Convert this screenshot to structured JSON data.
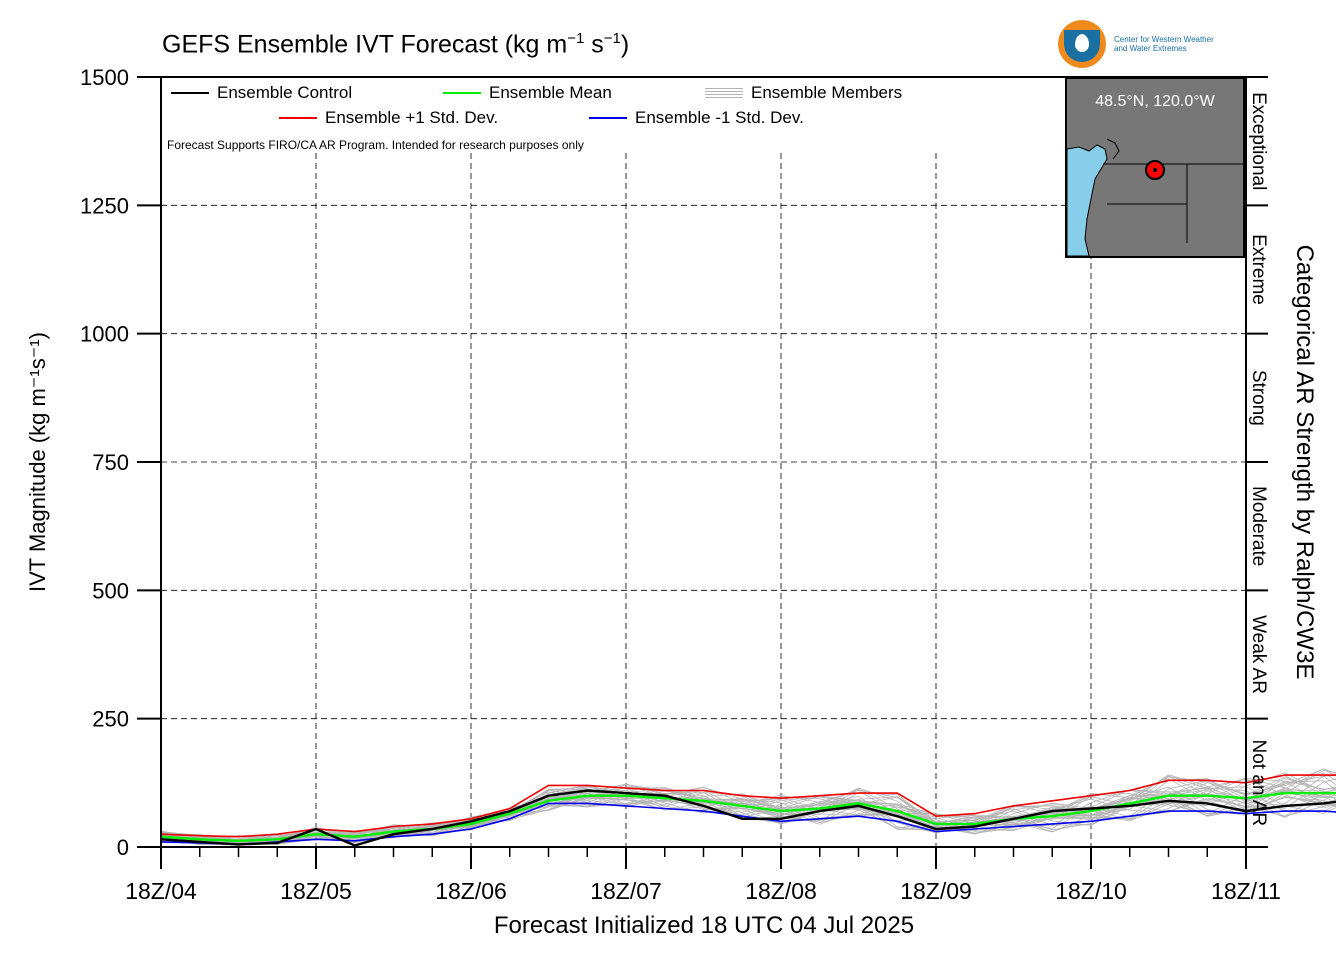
{
  "title": {
    "text": "GEFS Ensemble IVT Forecast (kg m",
    "exp1": "−1",
    "mid": " s",
    "exp2": "−1",
    "close": ")"
  },
  "logo": {
    "line1": "Center for Western Weather",
    "line2": "and Water Extremes"
  },
  "map": {
    "location": "48.5°N, 120.0°W",
    "water_color": "#87ceeb",
    "land_color": "#777777",
    "marker_color": "#ff0000"
  },
  "disclaimer": "Forecast Supports FIRO/CA AR Program. Intended for research purposes only",
  "legend": {
    "control": "Ensemble Control",
    "mean": "Ensemble Mean",
    "members": "Ensemble Members",
    "plus": "Ensemble +1 Std. Dev.",
    "minus": "Ensemble -1 Std. Dev."
  },
  "colors": {
    "control": "#000000",
    "mean": "#00ee00",
    "plus": "#ee0000",
    "minus": "#0000ee",
    "members": "#b4b4b4"
  },
  "axis_labels": {
    "y": "IVT Magnitude (kg m⁻¹s⁻¹)",
    "x": "Forecast Initialized 18 UTC 04 Jul 2025",
    "right": "Categorical AR Strength by Ralph/CW3E"
  },
  "categories": [
    "Not an AR",
    "Weak AR",
    "Moderate",
    "Strong",
    "Extreme",
    "Exceptional"
  ],
  "chart_data": {
    "type": "line",
    "title": "GEFS Ensemble IVT Forecast (kg m−1 s−1)",
    "xlabel": "Forecast Initialized 18 UTC 04 Jul 2025",
    "ylabel": "IVT Magnitude (kg m−1s−1)",
    "ylim": [
      0,
      1500
    ],
    "xlim": [
      0,
      168
    ],
    "x_step_hours": 6,
    "yticks": [
      0,
      250,
      500,
      750,
      1000,
      1250,
      1500
    ],
    "xticks": [
      {
        "hour": 0,
        "label": "18Z/04"
      },
      {
        "hour": 24,
        "label": "18Z/05"
      },
      {
        "hour": 48,
        "label": "18Z/06"
      },
      {
        "hour": 72,
        "label": "18Z/07"
      },
      {
        "hour": 96,
        "label": "18Z/08"
      },
      {
        "hour": 120,
        "label": "18Z/09"
      },
      {
        "hour": 144,
        "label": "18Z/10"
      },
      {
        "hour": 168,
        "label": "18Z/11"
      }
    ],
    "grid": true,
    "series": [
      {
        "name": "Ensemble Control",
        "role": "control",
        "values": [
          15,
          10,
          5,
          8,
          35,
          3,
          25,
          35,
          50,
          70,
          100,
          110,
          105,
          100,
          80,
          55,
          55,
          70,
          80,
          60,
          35,
          40,
          55,
          70,
          75,
          80,
          90,
          85,
          70,
          80,
          85,
          95,
          110,
          135,
          125,
          110,
          140,
          160,
          165,
          170,
          175,
          180,
          185,
          185,
          140,
          90,
          80,
          75,
          65,
          50,
          65,
          80,
          60,
          40,
          35,
          70,
          100,
          130
        ]
      },
      {
        "name": "Ensemble Mean",
        "role": "mean",
        "values": [
          20,
          15,
          12,
          15,
          25,
          20,
          30,
          35,
          45,
          65,
          90,
          100,
          100,
          95,
          90,
          80,
          70,
          75,
          85,
          70,
          45,
          45,
          55,
          60,
          70,
          85,
          100,
          100,
          95,
          105,
          105,
          105,
          115,
          130,
          140,
          135,
          125,
          125,
          125,
          120,
          120,
          125,
          120,
          110,
          90,
          80,
          75,
          70,
          65,
          60,
          65,
          70,
          70,
          60,
          60,
          65,
          75,
          80
        ]
      },
      {
        "name": "Ensemble +1 Std. Dev.",
        "role": "plus",
        "values": [
          25,
          22,
          20,
          25,
          35,
          30,
          40,
          45,
          55,
          75,
          120,
          120,
          115,
          110,
          110,
          100,
          95,
          100,
          105,
          105,
          60,
          65,
          80,
          90,
          100,
          110,
          130,
          130,
          125,
          140,
          140,
          140,
          150,
          175,
          190,
          185,
          165,
          160,
          165,
          165,
          165,
          170,
          165,
          160,
          120,
          105,
          95,
          85,
          80,
          75,
          80,
          85,
          90,
          90,
          95,
          105,
          115,
          130
        ]
      },
      {
        "name": "Ensemble -1 Std. Dev.",
        "role": "minus",
        "values": [
          10,
          8,
          5,
          10,
          15,
          12,
          20,
          25,
          35,
          55,
          85,
          85,
          80,
          75,
          70,
          60,
          50,
          55,
          60,
          50,
          30,
          35,
          40,
          45,
          50,
          60,
          70,
          70,
          65,
          70,
          70,
          65,
          70,
          85,
          80,
          78,
          75,
          72,
          72,
          70,
          68,
          75,
          70,
          65,
          50,
          45,
          42,
          40,
          35,
          30,
          32,
          38,
          35,
          25,
          25,
          25,
          25,
          28
        ]
      }
    ]
  }
}
